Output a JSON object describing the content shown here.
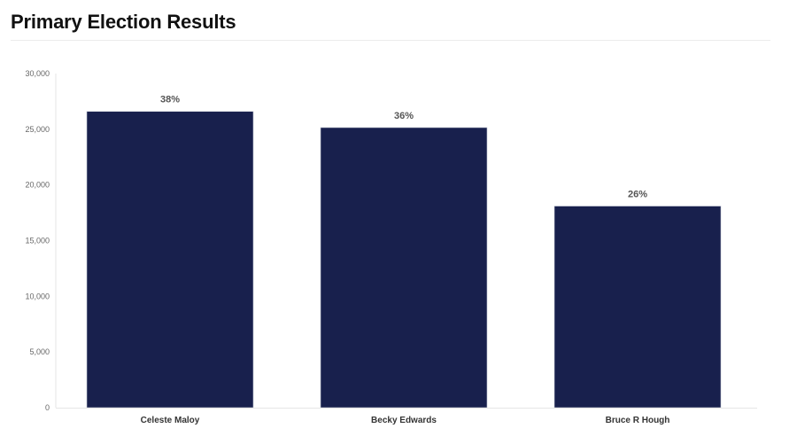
{
  "header": {
    "title": "Primary Election Results"
  },
  "chart_data": {
    "type": "bar",
    "title": "Primary Election Results",
    "categories": [
      "Celeste Maloy",
      "Becky Edwards",
      "Bruce R Hough"
    ],
    "values": [
      26600,
      25150,
      18100
    ],
    "data_labels": [
      "38%",
      "36%",
      "26%"
    ],
    "y_ticks": [
      0,
      5000,
      10000,
      15000,
      20000,
      25000,
      30000
    ],
    "y_tick_labels": [
      "0",
      "5,000",
      "10,000",
      "15,000",
      "20,000",
      "25,000",
      "30,000"
    ],
    "ylim": [
      0,
      30000
    ],
    "xlabel": "",
    "ylabel": "",
    "grid": false,
    "legend": "none",
    "bar_color": "#18204d"
  }
}
